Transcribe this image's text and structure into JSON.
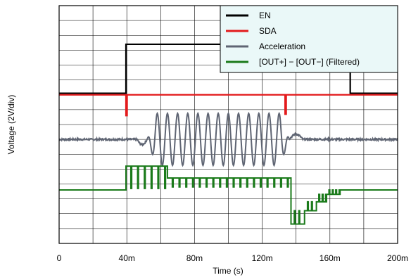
{
  "chart_data": {
    "type": "line",
    "title": "",
    "xlabel": "Time (s)",
    "ylabel": "Voltage (2V/div)",
    "xlim": [
      0,
      200
    ],
    "x_ticks": [
      0,
      40,
      80,
      120,
      160,
      200
    ],
    "x_tick_labels": [
      "0",
      "40m",
      "80m",
      "120m",
      "160m",
      "200m"
    ],
    "y_divisions": 16,
    "grid": true,
    "legend_position": "top-right",
    "colors": {
      "background": "#ffffff",
      "grid": "#000000",
      "legend_bg": "#eaf8f8"
    },
    "series": [
      {
        "name": "EN",
        "color": "#000000",
        "baseline_div": 10.1,
        "high_div": 13.4,
        "rise_at": 39.5,
        "fall_at": 172
      },
      {
        "name": "SDA",
        "color": "#e31a1c",
        "baseline_div": 10.0,
        "pulses": [
          {
            "at": 39.5,
            "depth_div": 1.4
          },
          {
            "at": 133.5,
            "depth_div": 1.3
          }
        ]
      },
      {
        "name": "Acceleration",
        "color": "#5f6573",
        "baseline_div": 7.0,
        "burst_start": 52,
        "burst_end": 136,
        "cycles": 14,
        "amplitude_div": 1.75
      },
      {
        "name": "[OUT+] − [OUT−] (Filtered)",
        "color": "#1a7a1a",
        "baseline_div": 3.6,
        "segments": [
          {
            "start": 39.5,
            "end": 64,
            "level_div": 5.2,
            "pulse_period": 4.0,
            "notch_div": 3.7
          },
          {
            "start": 64,
            "end": 137,
            "level_div": 4.4,
            "pulse_period": 4.0,
            "notch_div": 3.8
          },
          {
            "start": 137,
            "end": 145,
            "level_div": 1.3,
            "pulse_period": 2.7,
            "notch_div": 2.2
          },
          {
            "start": 145,
            "end": 152,
            "level_div": 2.2,
            "pulse_period": 2.4,
            "notch_div": 2.8
          },
          {
            "start": 152,
            "end": 158,
            "level_div": 2.8,
            "pulse_period": 2.0,
            "notch_div": 3.3
          },
          {
            "start": 158,
            "end": 166,
            "level_div": 3.3,
            "pulse_period": 2.0,
            "notch_div": 3.6
          }
        ]
      }
    ]
  }
}
